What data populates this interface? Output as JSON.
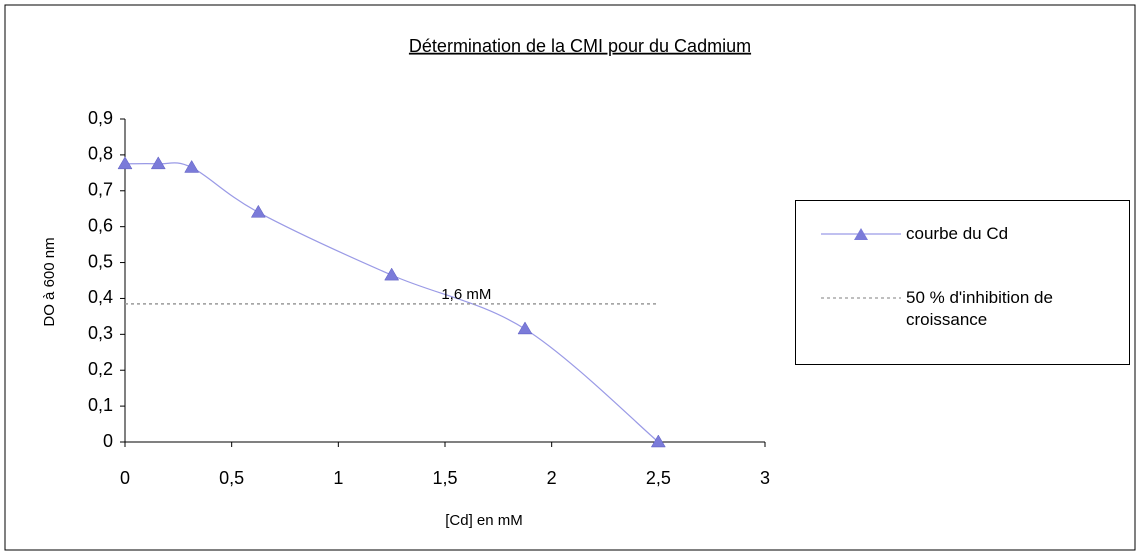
{
  "chart_data": {
    "type": "line",
    "title": "Détermination de la CMI pour du Cadmium",
    "x_label": "[Cd] en mM",
    "y_label": "DO à 600 nm",
    "series": [
      {
        "name": "courbe du Cd",
        "color": "#9a9ae6",
        "marker_color": "#7b7bd9",
        "smooth": true,
        "x": [
          0,
          0.156,
          0.3125,
          0.625,
          1.25,
          1.875,
          2.5
        ],
        "values": [
          0.775,
          0.775,
          0.765,
          0.64,
          0.465,
          0.315,
          0
        ]
      },
      {
        "name": "50 % d'inhibition de croissance",
        "color": "#999999",
        "dashed": true,
        "x": [
          0,
          2.5
        ],
        "values": [
          0.385,
          0.385
        ]
      }
    ],
    "annotations": [
      {
        "text": "1,6 mM",
        "x": 1.6,
        "y": 0.41
      }
    ],
    "xlim": [
      0,
      3
    ],
    "xticks": [
      0,
      {
        "value": 0.5,
        "label": "0,5"
      },
      1,
      {
        "value": 1.5,
        "label": "1,5"
      },
      2,
      {
        "value": 2.5,
        "label": "2,5"
      },
      3
    ],
    "ylim": [
      0,
      0.9
    ],
    "yticks": [
      0,
      {
        "value": 0.1,
        "label": "0,1"
      },
      {
        "value": 0.2,
        "label": "0,2"
      },
      {
        "value": 0.3,
        "label": "0,3"
      },
      {
        "value": 0.4,
        "label": "0,4"
      },
      {
        "value": 0.5,
        "label": "0,5"
      },
      {
        "value": 0.6,
        "label": "0,6"
      },
      {
        "value": 0.7,
        "label": "0,7"
      },
      {
        "value": 0.8,
        "label": "0,8"
      },
      {
        "value": 0.9,
        "label": "0,9"
      }
    ]
  }
}
